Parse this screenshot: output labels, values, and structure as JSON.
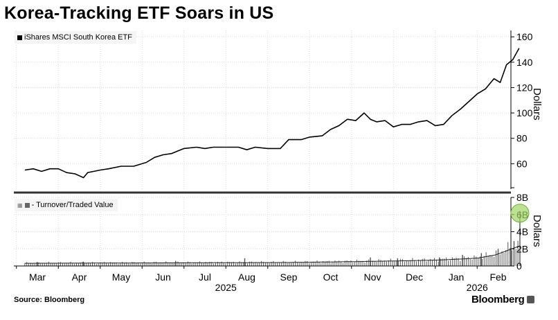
{
  "title": "Korea-Tracking ETF Soars in US",
  "source": "Source: Bloomberg",
  "brand": "Bloomberg",
  "colors": {
    "line": "#000000",
    "grid": "#d9d9d9",
    "bars": "#555555",
    "highlight": "#9fd463",
    "separator": "#333333"
  },
  "chart_data": [
    {
      "type": "line",
      "title": "Korea-Tracking ETF Soars in US",
      "legend": "iShares MSCI South Korea ETF",
      "legend_position": "top-left",
      "ylabel": "Dollars",
      "ylim": [
        40,
        165
      ],
      "yticks": [
        60,
        80,
        100,
        120,
        140,
        160
      ],
      "grid": true,
      "months": [
        "Mar",
        "Apr",
        "May",
        "Jun",
        "Jul",
        "Aug",
        "Sep",
        "Oct",
        "Nov",
        "Dec",
        "Jan",
        "Feb"
      ],
      "years": [
        {
          "label": "2025",
          "month_index": 4.5
        },
        {
          "label": "2026",
          "month_index": 10.5
        }
      ],
      "x_range_months": [
        -0.3,
        11.6
      ],
      "series": [
        {
          "name": "iShares MSCI South Korea ETF",
          "x": [
            -0.3,
            -0.1,
            0.1,
            0.3,
            0.5,
            0.7,
            0.9,
            1.1,
            1.2,
            1.35,
            1.5,
            1.7,
            2.0,
            2.3,
            2.6,
            2.8,
            3.0,
            3.2,
            3.5,
            3.8,
            4.0,
            4.2,
            4.5,
            4.8,
            5.0,
            5.2,
            5.5,
            5.8,
            6.0,
            6.3,
            6.5,
            6.8,
            7.0,
            7.2,
            7.4,
            7.6,
            7.8,
            7.95,
            8.1,
            8.3,
            8.5,
            8.7,
            8.9,
            9.1,
            9.3,
            9.5,
            9.7,
            9.9,
            10.1,
            10.3,
            10.5,
            10.7,
            10.9,
            11.05,
            11.2,
            11.35,
            11.5
          ],
          "values": [
            55,
            56,
            54,
            56,
            56,
            53,
            52,
            49,
            53,
            54,
            55,
            56,
            58,
            58,
            61,
            65,
            67,
            68,
            72,
            73,
            72,
            73,
            73,
            73,
            71,
            73,
            72,
            72,
            79,
            79,
            81,
            82,
            87,
            90,
            95,
            94,
            100,
            95,
            93,
            94,
            89,
            91,
            91,
            93,
            94,
            90,
            91,
            98,
            103,
            109,
            115,
            119,
            127,
            124,
            138,
            142,
            151
          ]
        }
      ]
    },
    {
      "type": "bar",
      "legend": "- Turnover/Traded Value",
      "legend_position": "top-left",
      "ylabel": "Dollars",
      "ylim": [
        0,
        8
      ],
      "yticks": [
        0,
        2,
        4,
        6,
        8
      ],
      "ytick_labels": [
        "0",
        "2B",
        "4B",
        "6B",
        "8B"
      ],
      "unit": "billions of dollars",
      "grid": true,
      "bar_count": 250,
      "profile_x_months": [
        -0.3,
        3.0,
        6.0,
        8.0,
        9.5,
        10.5,
        11.0,
        11.25,
        11.45,
        11.5
      ],
      "profile_values": [
        0.35,
        0.4,
        0.45,
        0.6,
        0.75,
        1.0,
        1.5,
        2.1,
        2.4,
        2.6
      ],
      "spikes": [
        {
          "x": 11.52,
          "value": 6.4,
          "highlight": true
        },
        {
          "x": 11.38,
          "value": 2.9
        },
        {
          "x": 11.0,
          "value": 2.0
        },
        {
          "x": 10.6,
          "value": 1.5
        },
        {
          "x": 10.15,
          "value": 1.3
        },
        {
          "x": 9.6,
          "value": 1.0
        },
        {
          "x": 8.6,
          "value": 0.9
        },
        {
          "x": 7.95,
          "value": 1.0
        },
        {
          "x": 4.95,
          "value": 0.9
        },
        {
          "x": 3.3,
          "value": 0.6
        },
        {
          "x": 1.1,
          "value": 0.5
        },
        {
          "x": 0.0,
          "value": 0.45
        }
      ]
    }
  ]
}
